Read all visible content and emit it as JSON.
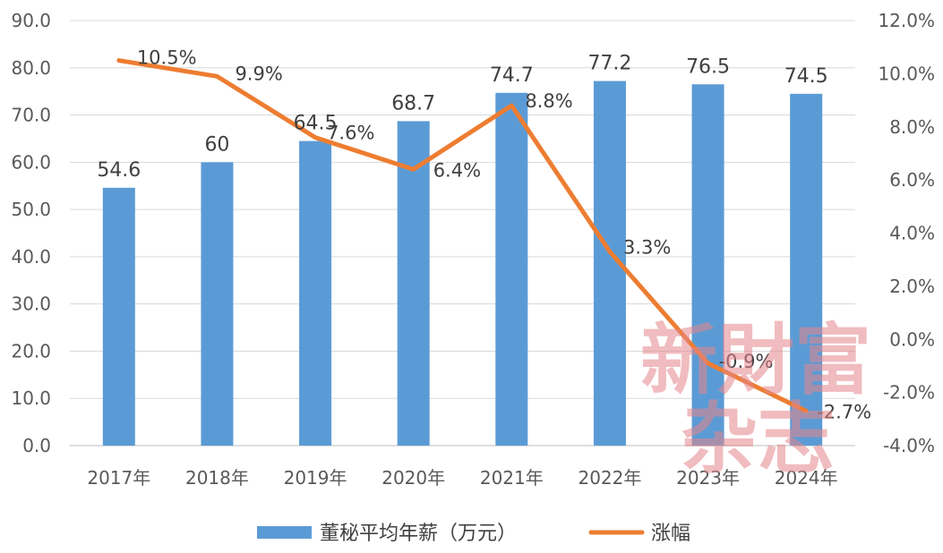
{
  "chart_data": {
    "type": "bar+line",
    "categories": [
      "2017年",
      "2018年",
      "2019年",
      "2020年",
      "2021年",
      "2022年",
      "2023年",
      "2024年"
    ],
    "series": [
      {
        "name": "董秘平均年薪（万元）",
        "type": "bar",
        "axis": "left",
        "color": "#5b9bd5",
        "values": [
          54.6,
          60,
          64.5,
          68.7,
          74.7,
          77.2,
          76.5,
          74.5
        ],
        "labels": [
          "54.6",
          "60",
          "64.5",
          "68.7",
          "74.7",
          "77.2",
          "76.5",
          "74.5"
        ]
      },
      {
        "name": "涨幅",
        "type": "line",
        "axis": "right",
        "color": "#ed7d31",
        "values": [
          10.5,
          9.9,
          7.6,
          6.4,
          8.8,
          3.3,
          -0.9,
          -2.7
        ],
        "labels": [
          "10.5%",
          "9.9%",
          "7.6%",
          "6.4%",
          "8.8%",
          "3.3%",
          "-0.9%",
          "-2.7%"
        ]
      }
    ],
    "y_left": {
      "min": 0,
      "max": 90,
      "ticks": [
        "0.0",
        "10.0",
        "20.0",
        "30.0",
        "40.0",
        "50.0",
        "60.0",
        "70.0",
        "80.0",
        "90.0"
      ]
    },
    "y_right": {
      "min": -4,
      "max": 12,
      "ticks": [
        "-4.0%",
        "-2.0%",
        "0.0%",
        "2.0%",
        "4.0%",
        "6.0%",
        "8.0%",
        "10.0%",
        "12.0%"
      ]
    },
    "grid": true,
    "legend_position": "bottom"
  },
  "watermark": {
    "line1": "新財富",
    "line2": "杂志"
  }
}
